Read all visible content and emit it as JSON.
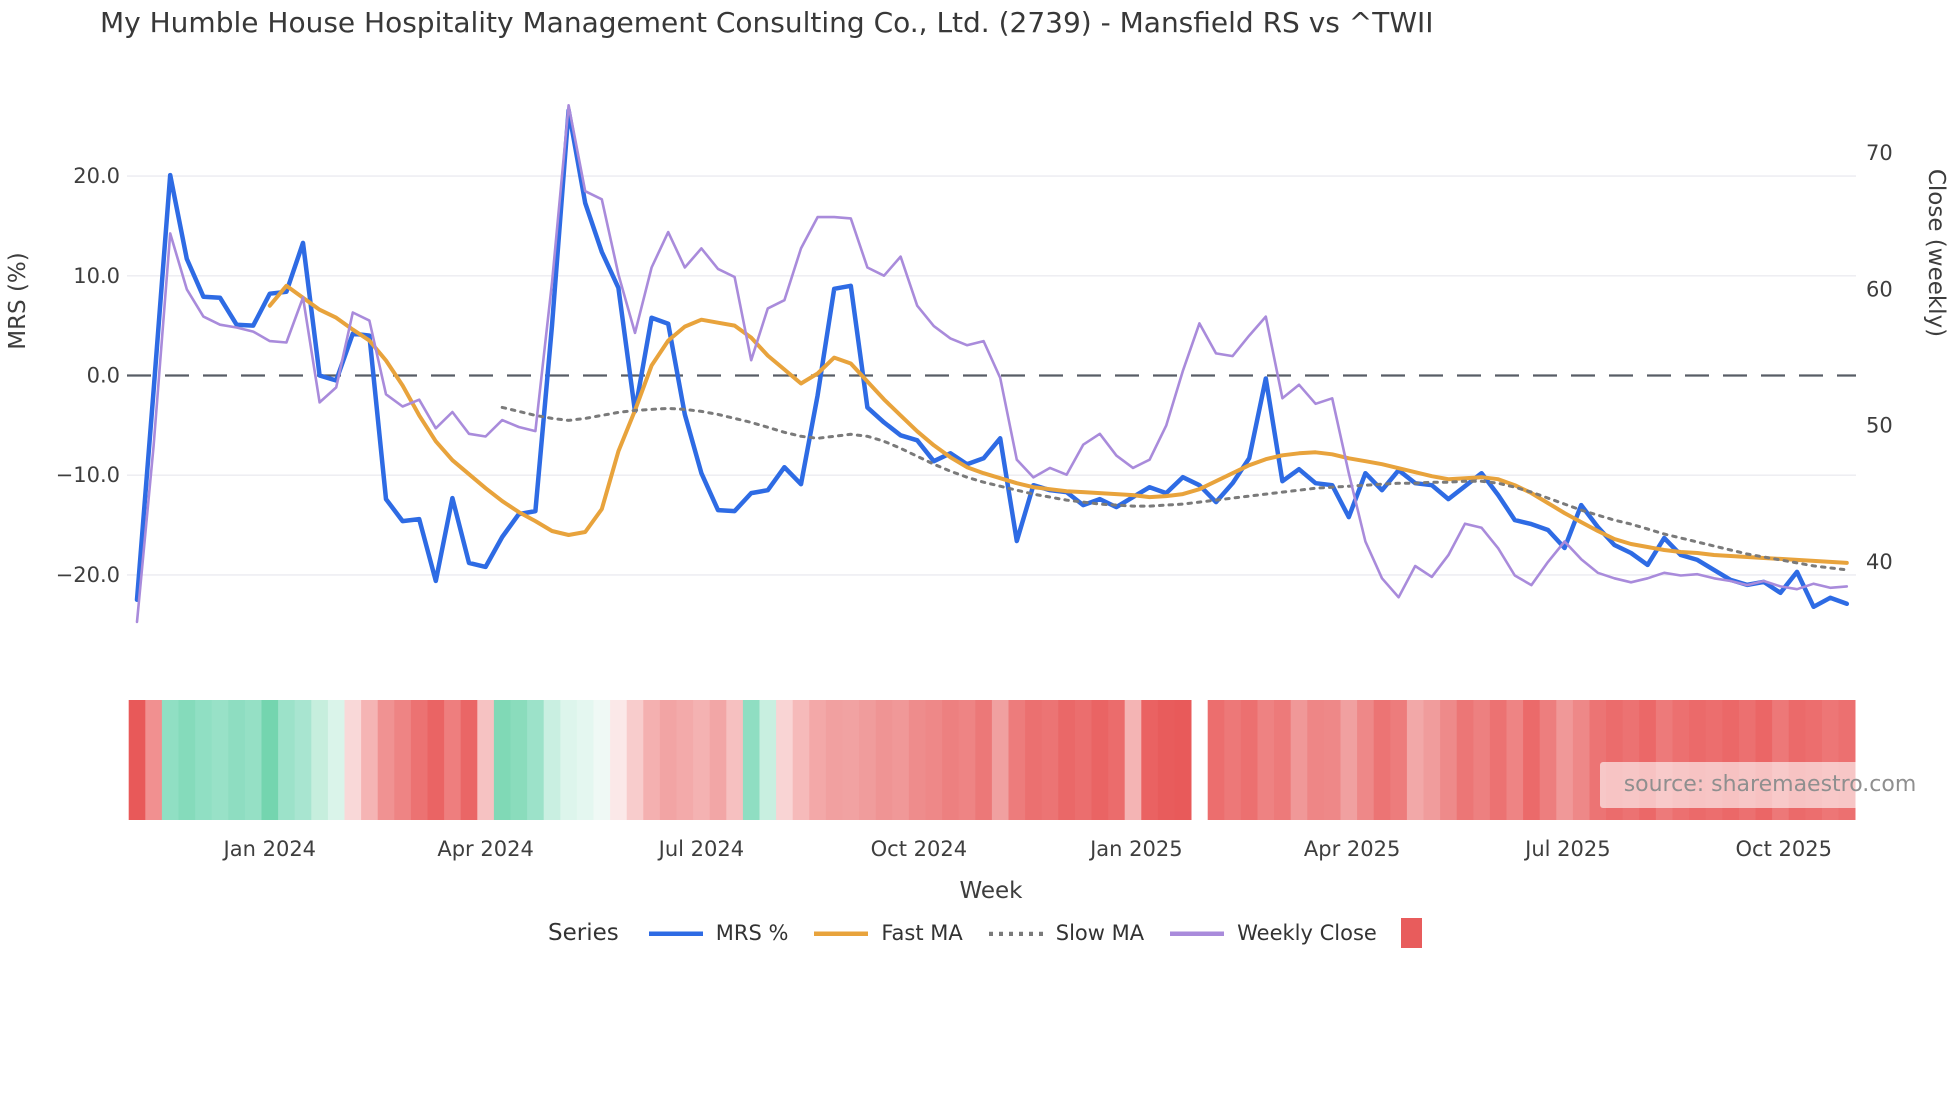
{
  "title": "My Humble House Hospitality Management Consulting Co., Ltd. (2739) - Mansfield RS vs ^TWII",
  "watermark": "source: sharemaestro.com",
  "legend": {
    "title": "Series",
    "items": [
      {
        "label": "MRS %",
        "color": "#2e6be4",
        "type": "line"
      },
      {
        "label": "Fast MA",
        "color": "#e8a33c",
        "type": "line"
      },
      {
        "label": "Slow MA",
        "color": "#7a7a7a",
        "type": "dotted"
      },
      {
        "label": "Weekly Close",
        "color": "#a98bdb",
        "type": "line"
      },
      {
        "label": "",
        "color": "#e85c5c",
        "type": "square"
      }
    ]
  },
  "chart_data": {
    "type": "line",
    "title": "My Humble House Hospitality Management Consulting Co., Ltd. (2739) - Mansfield RS vs ^TWII",
    "xlabel": "Week",
    "grid": true,
    "zero_line": true,
    "y_left": {
      "label": "MRS (%)",
      "ticks": [
        {
          "v": 20,
          "label": "20.0"
        },
        {
          "v": 10,
          "label": "10.0"
        },
        {
          "v": 0,
          "label": "0.0"
        },
        {
          "v": -10,
          "label": "−10.0"
        },
        {
          "v": -20,
          "label": "−20.0"
        }
      ]
    },
    "y_right": {
      "label": "Close (weekly)",
      "ticks": [
        {
          "v": 70,
          "label": "70"
        },
        {
          "v": 60,
          "label": "60"
        },
        {
          "v": 50,
          "label": "50"
        },
        {
          "v": 40,
          "label": "40"
        }
      ]
    },
    "x_ticks": [
      {
        "label": "Jan 2024",
        "week": 8
      },
      {
        "label": "Apr 2024",
        "week": 21
      },
      {
        "label": "Jul 2024",
        "week": 34
      },
      {
        "label": "Oct 2024",
        "week": 47.1
      },
      {
        "label": "Jan 2025",
        "week": 60.2
      },
      {
        "label": "Apr 2025",
        "week": 73.2
      },
      {
        "label": "Jul 2025",
        "week": 86.2
      },
      {
        "label": "Oct 2025",
        "week": 99.2
      }
    ],
    "series": [
      {
        "name": "MRS %",
        "axis": "left",
        "color": "#2e6be4",
        "width": 4.5,
        "dash": null,
        "values": [
          -22.5,
          -1.5,
          20.1,
          11.7,
          7.9,
          7.8,
          5.1,
          5.0,
          8.2,
          8.4,
          13.3,
          0.0,
          -0.5,
          4.2,
          4.0,
          -12.4,
          -14.6,
          -14.4,
          -20.6,
          -12.3,
          -18.8,
          -19.2,
          -16.2,
          -13.9,
          -13.6,
          5.0,
          26.6,
          17.3,
          12.4,
          8.8,
          -3.6,
          5.8,
          5.2,
          -3.9,
          -9.8,
          -13.5,
          -13.6,
          -11.8,
          -11.5,
          -9.2,
          -10.9,
          -2.0,
          8.7,
          9.0,
          -3.2,
          -4.7,
          -6.0,
          -6.5,
          -8.6,
          -7.8,
          -8.9,
          -8.3,
          -6.3,
          -16.6,
          -11.0,
          -11.5,
          -11.7,
          -13.0,
          -12.4,
          -13.2,
          -12.2,
          -11.2,
          -11.8,
          -10.2,
          -11.0,
          -12.7,
          -10.8,
          -8.3,
          -0.3,
          -10.6,
          -9.4,
          -10.8,
          -11.0,
          -14.2,
          -9.8,
          -11.5,
          -9.5,
          -10.8,
          -11.0,
          -12.4,
          -11.1,
          -9.8,
          -12.0,
          -14.5,
          -14.9,
          -15.5,
          -17.3,
          -13.0,
          -15.2,
          -17.0,
          -17.8,
          -19.0,
          -16.3,
          -18.0,
          -18.5,
          -19.5,
          -20.5,
          -21.0,
          -20.7,
          -21.8,
          -19.7,
          -23.2,
          -22.3,
          -22.9
        ]
      },
      {
        "name": "Fast MA",
        "axis": "left",
        "color": "#e8a33c",
        "width": 4,
        "dash": null,
        "values": [
          null,
          null,
          null,
          null,
          null,
          null,
          null,
          null,
          7.0,
          9.0,
          7.8,
          6.6,
          5.8,
          4.6,
          3.5,
          1.5,
          -1.0,
          -4.0,
          -6.6,
          -8.5,
          -9.9,
          -11.3,
          -12.6,
          -13.7,
          -14.6,
          -15.6,
          -16.0,
          -15.7,
          -13.4,
          -7.6,
          -3.5,
          1.0,
          3.5,
          4.9,
          5.6,
          5.3,
          5.0,
          3.8,
          2.0,
          0.6,
          -0.8,
          0.2,
          1.8,
          1.2,
          -0.6,
          -2.4,
          -4.0,
          -5.6,
          -7.0,
          -8.2,
          -9.2,
          -9.8,
          -10.3,
          -10.8,
          -11.2,
          -11.4,
          -11.6,
          -11.7,
          -11.8,
          -11.9,
          -12.0,
          -12.2,
          -12.1,
          -11.9,
          -11.4,
          -10.6,
          -9.8,
          -9.0,
          -8.4,
          -8.0,
          -7.8,
          -7.7,
          -7.9,
          -8.3,
          -8.6,
          -8.9,
          -9.3,
          -9.7,
          -10.1,
          -10.4,
          -10.3,
          -10.2,
          -10.4,
          -11.0,
          -11.8,
          -12.8,
          -13.8,
          -14.7,
          -15.6,
          -16.4,
          -16.9,
          -17.2,
          -17.5,
          -17.7,
          -17.8,
          -18.0,
          -18.1,
          -18.2,
          -18.3,
          -18.4,
          -18.5,
          -18.6,
          -18.7,
          -18.8
        ]
      },
      {
        "name": "Slow MA",
        "axis": "left",
        "color": "#7a7a7a",
        "width": 3,
        "dash": "3.5 6",
        "values": [
          null,
          null,
          null,
          null,
          null,
          null,
          null,
          null,
          null,
          null,
          null,
          null,
          null,
          null,
          null,
          null,
          null,
          null,
          null,
          null,
          null,
          null,
          -3.2,
          -3.6,
          -4.0,
          -4.3,
          -4.5,
          -4.3,
          -4.0,
          -3.7,
          -3.5,
          -3.4,
          -3.3,
          -3.4,
          -3.6,
          -3.9,
          -4.3,
          -4.7,
          -5.2,
          -5.7,
          -6.1,
          -6.3,
          -6.1,
          -5.9,
          -6.1,
          -6.6,
          -7.3,
          -8.1,
          -8.9,
          -9.6,
          -10.2,
          -10.7,
          -11.1,
          -11.5,
          -11.9,
          -12.2,
          -12.5,
          -12.7,
          -12.9,
          -13.0,
          -13.1,
          -13.1,
          -13.0,
          -12.9,
          -12.7,
          -12.5,
          -12.3,
          -12.1,
          -11.9,
          -11.7,
          -11.5,
          -11.3,
          -11.2,
          -11.1,
          -11.0,
          -10.9,
          -10.8,
          -10.8,
          -10.7,
          -10.7,
          -10.6,
          -10.6,
          -10.8,
          -11.2,
          -11.7,
          -12.3,
          -12.9,
          -13.5,
          -14.0,
          -14.5,
          -14.9,
          -15.4,
          -15.9,
          -16.3,
          -16.7,
          -17.1,
          -17.5,
          -17.9,
          -18.2,
          -18.5,
          -18.8,
          -19.1,
          -19.3,
          -19.5
        ]
      },
      {
        "name": "Weekly Close",
        "axis": "right",
        "color": "#a98bdb",
        "width": 2.6,
        "dash": null,
        "values": [
          35.6,
          48.5,
          64.1,
          60.0,
          58.0,
          57.4,
          57.2,
          56.9,
          56.2,
          56.1,
          59.4,
          51.7,
          52.8,
          58.3,
          57.7,
          52.3,
          51.4,
          51.9,
          49.8,
          51.0,
          49.4,
          49.2,
          50.4,
          49.9,
          49.6,
          60.5,
          73.5,
          67.2,
          66.6,
          61.1,
          56.8,
          61.6,
          64.2,
          61.6,
          63.0,
          61.5,
          60.9,
          54.8,
          58.6,
          59.2,
          63.0,
          65.3,
          65.3,
          65.2,
          61.6,
          61.0,
          62.4,
          58.8,
          57.3,
          56.4,
          55.9,
          56.2,
          53.5,
          47.5,
          46.2,
          46.9,
          46.4,
          48.6,
          49.4,
          47.8,
          46.9,
          47.5,
          50.0,
          54.0,
          57.5,
          55.3,
          55.1,
          56.6,
          58.0,
          52.0,
          53.0,
          51.6,
          52.0,
          46.5,
          41.5,
          38.8,
          37.4,
          39.7,
          38.9,
          40.5,
          42.8,
          42.5,
          41.0,
          39.0,
          38.3,
          40.0,
          41.5,
          40.2,
          39.2,
          38.8,
          38.5,
          38.8,
          39.2,
          39.0,
          39.1,
          38.8,
          38.6,
          38.3,
          38.6,
          38.2,
          38.0,
          38.4,
          38.1,
          38.2
        ]
      }
    ],
    "heatmap": {
      "strip1_start_week": 0,
      "strip1_colors": [
        "#e85959",
        "#f19090",
        "#90dfc3",
        "#85dbbb",
        "#90dfc3",
        "#98e1c7",
        "#8eddc1",
        "#95e0c5",
        "#74d5af",
        "#9ce2c9",
        "#a8e5d0",
        "#c6eedd",
        "#daf4ea",
        "#f9d8d8",
        "#f5b4b4",
        "#f09292",
        "#ee8484",
        "#ec7272",
        "#ea6464",
        "#ee7e7e",
        "#ea6666",
        "#f6c2c2",
        "#80d9b6",
        "#8adcbc",
        "#9ce2c9",
        "#c9efe1",
        "#ddf5ec",
        "#e4f7f0",
        "#eff9f5",
        "#fbe8e8",
        "#f8cccc",
        "#f4b0b0",
        "#f2a4a4",
        "#f3aaaa",
        "#f4b2b2",
        "#f2a6a6",
        "#f6c0c0",
        "#8fdec2",
        "#c8efe0",
        "#f9d4d4",
        "#f6baba",
        "#f3a8a8",
        "#f1a0a0",
        "#f1a2a2",
        "#f09c9c",
        "#ef9494",
        "#f09898",
        "#ee8c8c",
        "#ee8888",
        "#ed8080",
        "#ee8484",
        "#ec7878",
        "#f0a0a0",
        "#ed7c7c",
        "#eb7070",
        "#ec7474",
        "#ea6868",
        "#eb6e6e",
        "#ea6464",
        "#eb6c6c",
        "#f4b4b4",
        "#ea6262",
        "#e85c5c",
        "#e85a5a"
      ],
      "strip2_start_week": 65,
      "strip2_colors": [
        "#ec6e6e",
        "#ed7878",
        "#ec7070",
        "#ee8282",
        "#ed7a7a",
        "#f09898",
        "#ee8686",
        "#ee8888",
        "#f0a0a0",
        "#ee8888",
        "#ec7474",
        "#ed7c7c",
        "#f2a8a8",
        "#f09c9c",
        "#ee8a8a",
        "#ec7676",
        "#ed8080",
        "#ec7272",
        "#ee8484",
        "#eb6a6a",
        "#ed7e7e",
        "#f09898",
        "#ee8888",
        "#ec7474",
        "#eb6c6c",
        "#ec7272",
        "#eb6868",
        "#ed7a7a",
        "#ec7070",
        "#eb6a6a",
        "#ec6e6e",
        "#eb6868",
        "#ec7070",
        "#eb6666",
        "#ed7878",
        "#eb6a6a",
        "#ec6e6e",
        "#ed7676",
        "#ec7070"
      ]
    }
  }
}
